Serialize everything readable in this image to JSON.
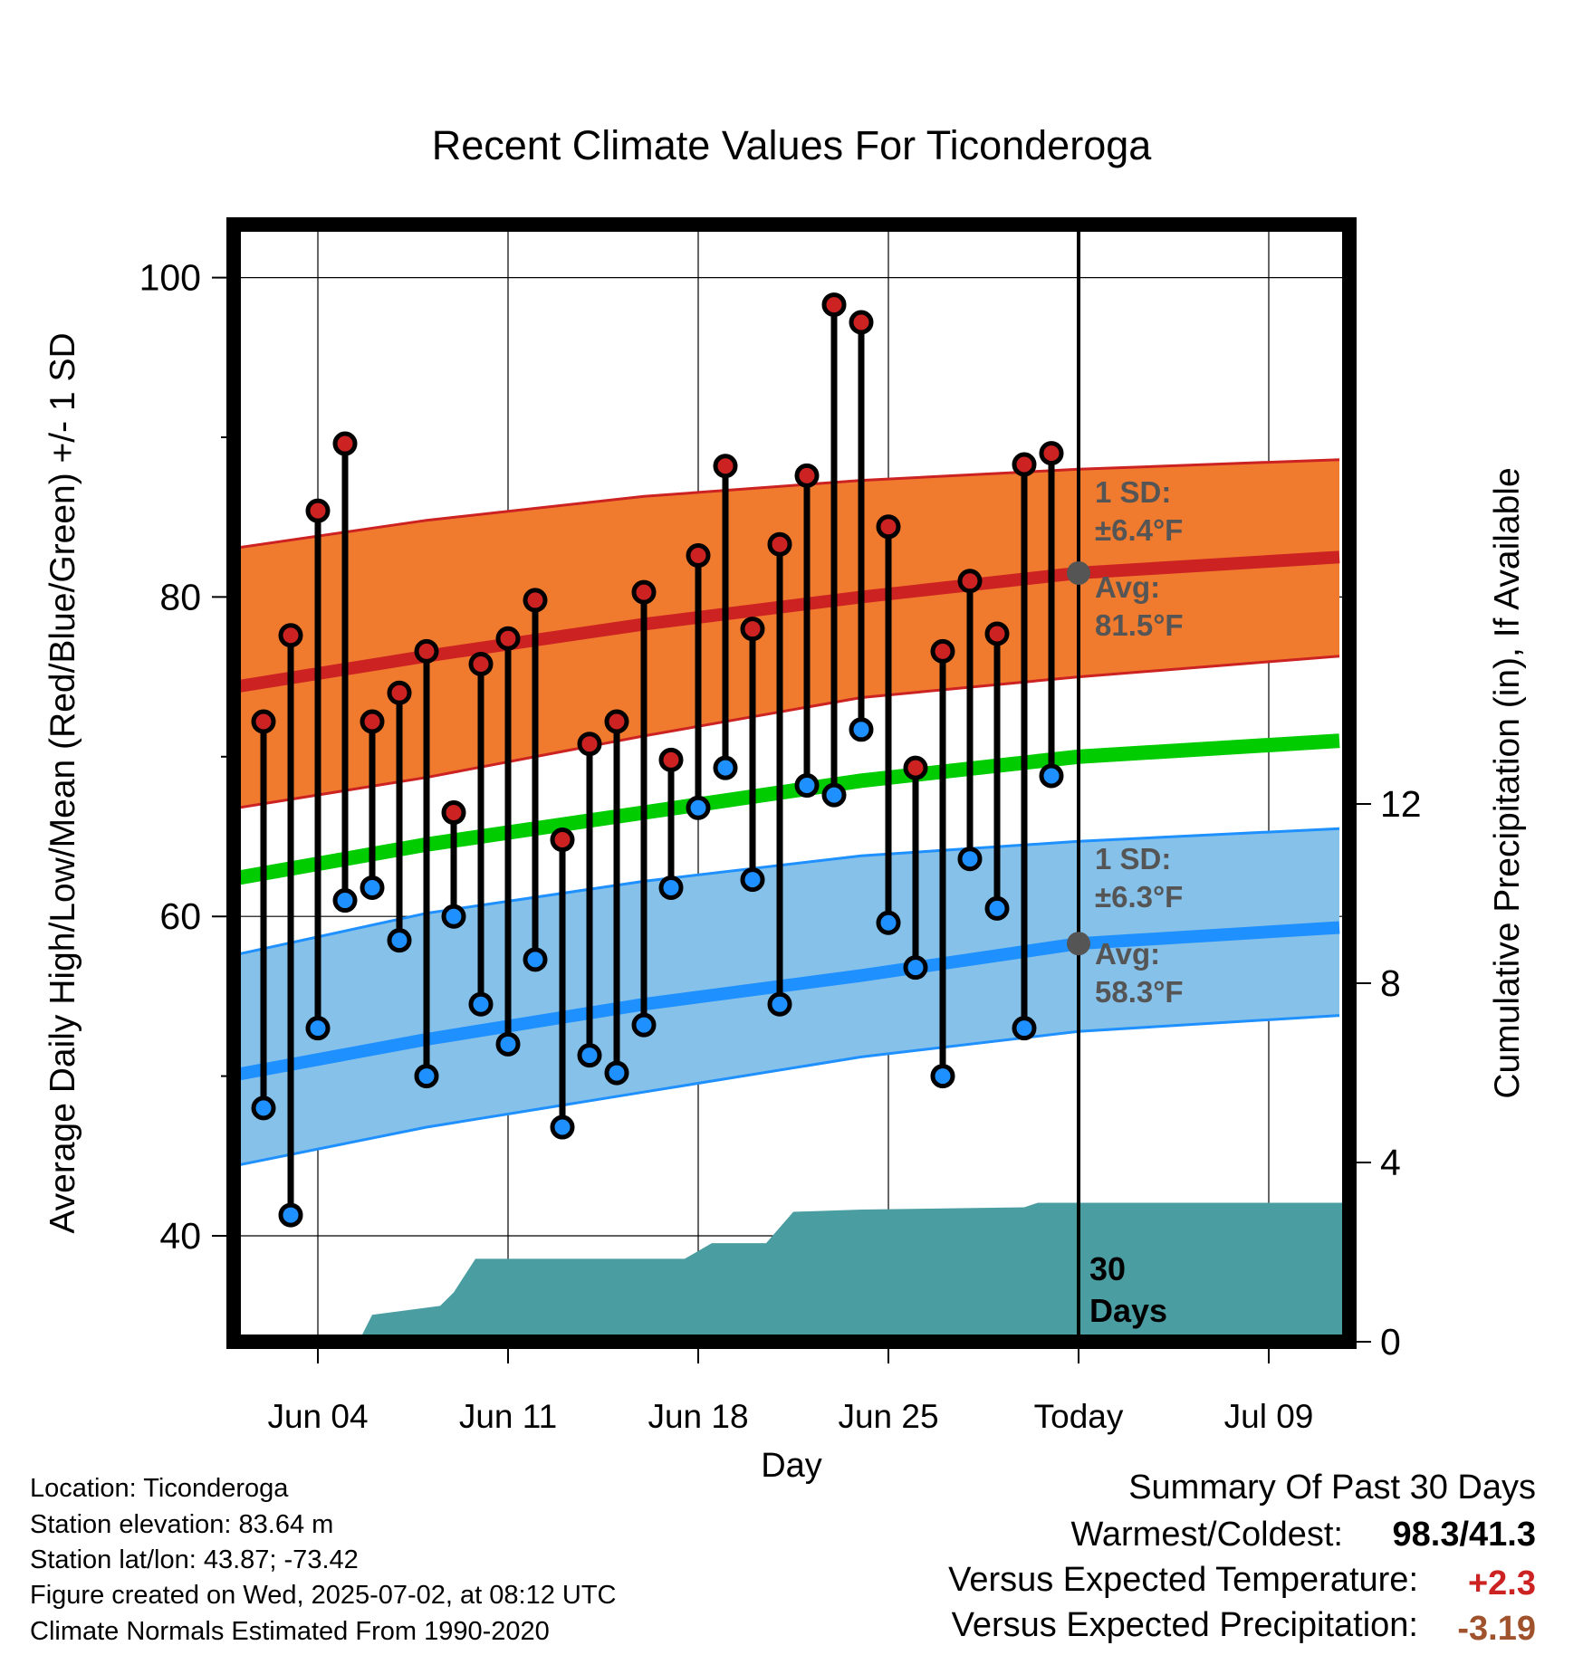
{
  "chart_data": {
    "type": "line",
    "title": "Recent Climate Values For Ticonderoga",
    "xlabel": "Day",
    "ylabel": "Average Daily High/Low/Mean (Red/Blue/Green) +/- 1 SD",
    "y2label": "Cumulative Precipitation (in), If Available",
    "xlim_days": [
      -32,
      10
    ],
    "ylim": [
      33.8,
      103.5
    ],
    "y2lim": [
      0,
      24.5
    ],
    "yticks": [
      40,
      60,
      80,
      100
    ],
    "yticks_minor": [
      50,
      70,
      90
    ],
    "y2ticks": [
      0,
      4,
      8,
      12
    ],
    "xticks": [
      {
        "day": -28,
        "label": "Jun 04"
      },
      {
        "day": -21,
        "label": "Jun 11"
      },
      {
        "day": -14,
        "label": "Jun 18"
      },
      {
        "day": -7,
        "label": "Jun 25"
      },
      {
        "day": 0,
        "label": "Today"
      },
      {
        "day": 7,
        "label": "Jul 09"
      }
    ],
    "grid": true,
    "normals": {
      "days": [
        -31.3,
        -24,
        -16,
        -8,
        0,
        9.6
      ],
      "high_avg": [
        74.3,
        76.3,
        78.3,
        80.0,
        81.5,
        82.5
      ],
      "high_sd_upper": [
        83.0,
        84.8,
        86.3,
        87.3,
        88.0,
        88.6
      ],
      "high_sd_lower": [
        66.7,
        68.7,
        71.3,
        73.7,
        75.0,
        76.3
      ],
      "mean_avg": [
        62.3,
        64.5,
        66.5,
        68.5,
        70.0,
        71.0
      ],
      "low_avg": [
        50.0,
        52.3,
        54.5,
        56.3,
        58.3,
        59.3
      ],
      "low_sd_upper": [
        57.5,
        60.2,
        62.2,
        63.8,
        64.7,
        65.5
      ],
      "low_sd_lower": [
        44.3,
        46.8,
        49.0,
        51.2,
        52.8,
        53.8
      ]
    },
    "days": [
      -30,
      -29,
      -28,
      -27,
      -26,
      -25,
      -24,
      -23,
      -22,
      -21,
      -20,
      -19,
      -18,
      -17,
      -16,
      -15,
      -14,
      -13,
      -12,
      -11,
      -10,
      -9,
      -8,
      -7,
      -6,
      -5,
      -4,
      -3,
      -2,
      -1
    ],
    "highs": [
      72.2,
      77.6,
      85.4,
      89.6,
      72.2,
      74.0,
      76.6,
      66.5,
      75.8,
      77.4,
      79.8,
      64.8,
      70.8,
      72.2,
      80.3,
      69.8,
      82.6,
      88.2,
      78.0,
      83.3,
      87.6,
      98.3,
      97.2,
      84.4,
      69.3,
      76.6,
      81.0,
      77.7,
      88.3,
      89.0
    ],
    "lows": [
      48.0,
      41.3,
      53.0,
      61.0,
      61.8,
      58.5,
      50.0,
      60.0,
      54.5,
      52.0,
      57.3,
      46.8,
      51.3,
      50.2,
      53.2,
      61.8,
      66.8,
      69.3,
      62.3,
      54.5,
      68.2,
      67.6,
      71.7,
      59.6,
      56.8,
      50.0,
      63.6,
      60.5,
      53.0,
      68.8
    ],
    "precip_cumulative": {
      "days": [
        -32,
        -26.5,
        -26,
        -23.5,
        -23,
        -22.2,
        -21.5,
        -14.5,
        -13.5,
        -11.5,
        -10.5,
        -8,
        -2,
        -1.5,
        10
      ],
      "values": [
        0,
        0,
        0.6,
        0.8,
        1.1,
        1.85,
        1.85,
        1.85,
        2.2,
        2.2,
        2.9,
        2.95,
        3.0,
        3.1,
        3.1
      ]
    },
    "annotations": {
      "high_sd": "1 SD:",
      "high_sd_value": "±6.4°F",
      "high_avg_label": "Avg:",
      "high_avg_value": "81.5°F",
      "high_avg_point": 81.5,
      "low_sd": "1 SD:",
      "low_sd_value": "±6.3°F",
      "low_avg_label": "Avg:",
      "low_avg_value": "58.3°F",
      "low_avg_point": 58.3,
      "period_number": "30",
      "period_unit": "Days"
    },
    "colors": {
      "high_band": "#f07b2f",
      "high_line": "#cc2222",
      "low_band": "#86c1ea",
      "low_line": "#1e90ff",
      "mean_line": "#00cc00",
      "precip": "#4a9ea2",
      "high_dot": "#cc2222",
      "low_dot": "#1e90ff",
      "annotation": "#555555"
    }
  },
  "footer": {
    "location": "Location: Ticonderoga",
    "elevation": "Station elevation: 83.64 m",
    "latlon": "Station lat/lon: 43.87; -73.42",
    "created": "Figure created on Wed, 2025-07-02, at 08:12 UTC",
    "normals": "Climate Normals Estimated From 1990-2020"
  },
  "summary": {
    "title": "Summary Of Past 30 Days",
    "warmest_label": "Warmest/Coldest:",
    "warmest_value": "98.3/41.3",
    "temp_label": "Versus Expected Temperature:",
    "temp_value": "+2.3",
    "temp_color": "#cc2222",
    "precip_label": "Versus Expected Precipitation:",
    "precip_value": "-3.19",
    "precip_color": "#a0522d"
  }
}
